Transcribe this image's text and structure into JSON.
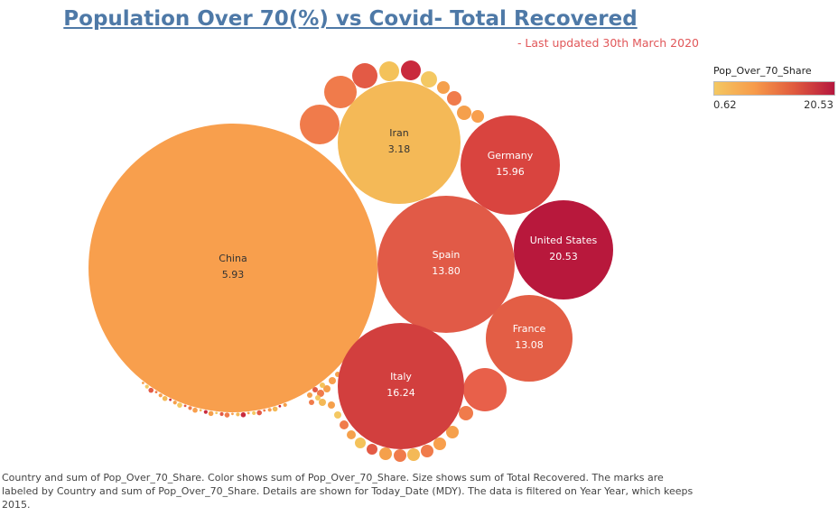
{
  "header": {
    "title": "Population Over 70(%) vs Covid- Total Recovered",
    "subtitle": "- Last updated 30th March 2020"
  },
  "legend": {
    "title": "Pop_Over_70_Share",
    "min_label": "0.62",
    "max_label": "20.53",
    "colors": [
      "#f4c862",
      "#f79b4a",
      "#e05a3e",
      "#b5173e"
    ]
  },
  "caption": "Country and sum of Pop_Over_70_Share.  Color shows sum of Pop_Over_70_Share.  Size shows sum of Total Recovered.  The marks are labeled by Country and sum of Pop_Over_70_Share.  Details are shown for Today_Date (MDY). The data is filtered on Year Year, which keeps 2015.",
  "chart_data": {
    "type": "packed-bubble",
    "size_field": "Total Recovered",
    "color_field": "Pop_Over_70_Share",
    "color_range": [
      0.62,
      20.53
    ],
    "labeled_bubbles": [
      {
        "country": "China",
        "pop_over_70_share": "5.93",
        "color": "#f89f4d"
      },
      {
        "country": "Iran",
        "pop_over_70_share": "3.18",
        "color": "#f4b957"
      },
      {
        "country": "Germany",
        "pop_over_70_share": "15.96",
        "color": "#d9443f"
      },
      {
        "country": "Spain",
        "pop_over_70_share": "13.80",
        "color": "#e15a47"
      },
      {
        "country": "United States",
        "pop_over_70_share": "20.53",
        "color": "#b8183c"
      },
      {
        "country": "France",
        "pop_over_70_share": "13.08",
        "color": "#e35e45"
      },
      {
        "country": "Italy",
        "pop_over_70_share": "16.24",
        "color": "#d23f3e"
      }
    ]
  }
}
